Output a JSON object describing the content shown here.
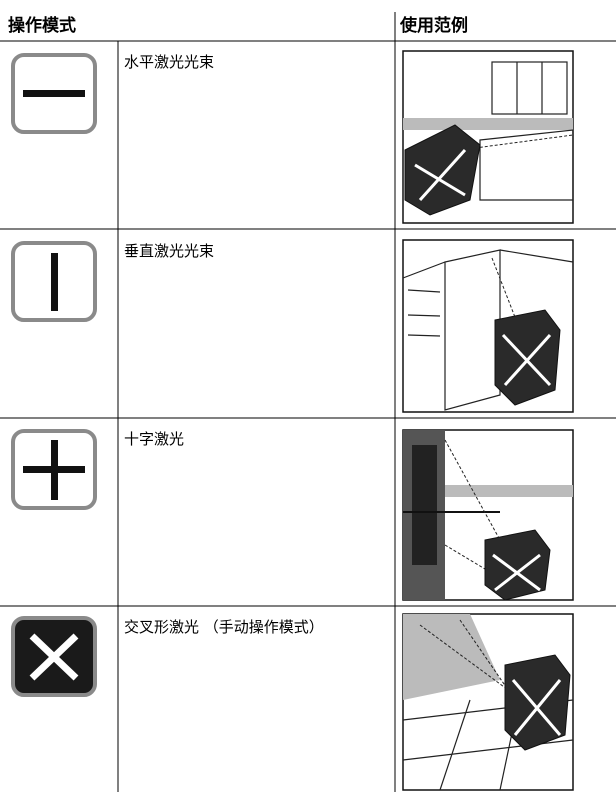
{
  "header": {
    "columns": [
      "操作模式",
      "使用范例"
    ]
  },
  "rows": [
    {
      "description": "水平激光光束"
    },
    {
      "description": "垂直激光光束"
    },
    {
      "description": "十字激光"
    },
    {
      "description": "交叉形激光 （手动操作模式）"
    }
  ]
}
